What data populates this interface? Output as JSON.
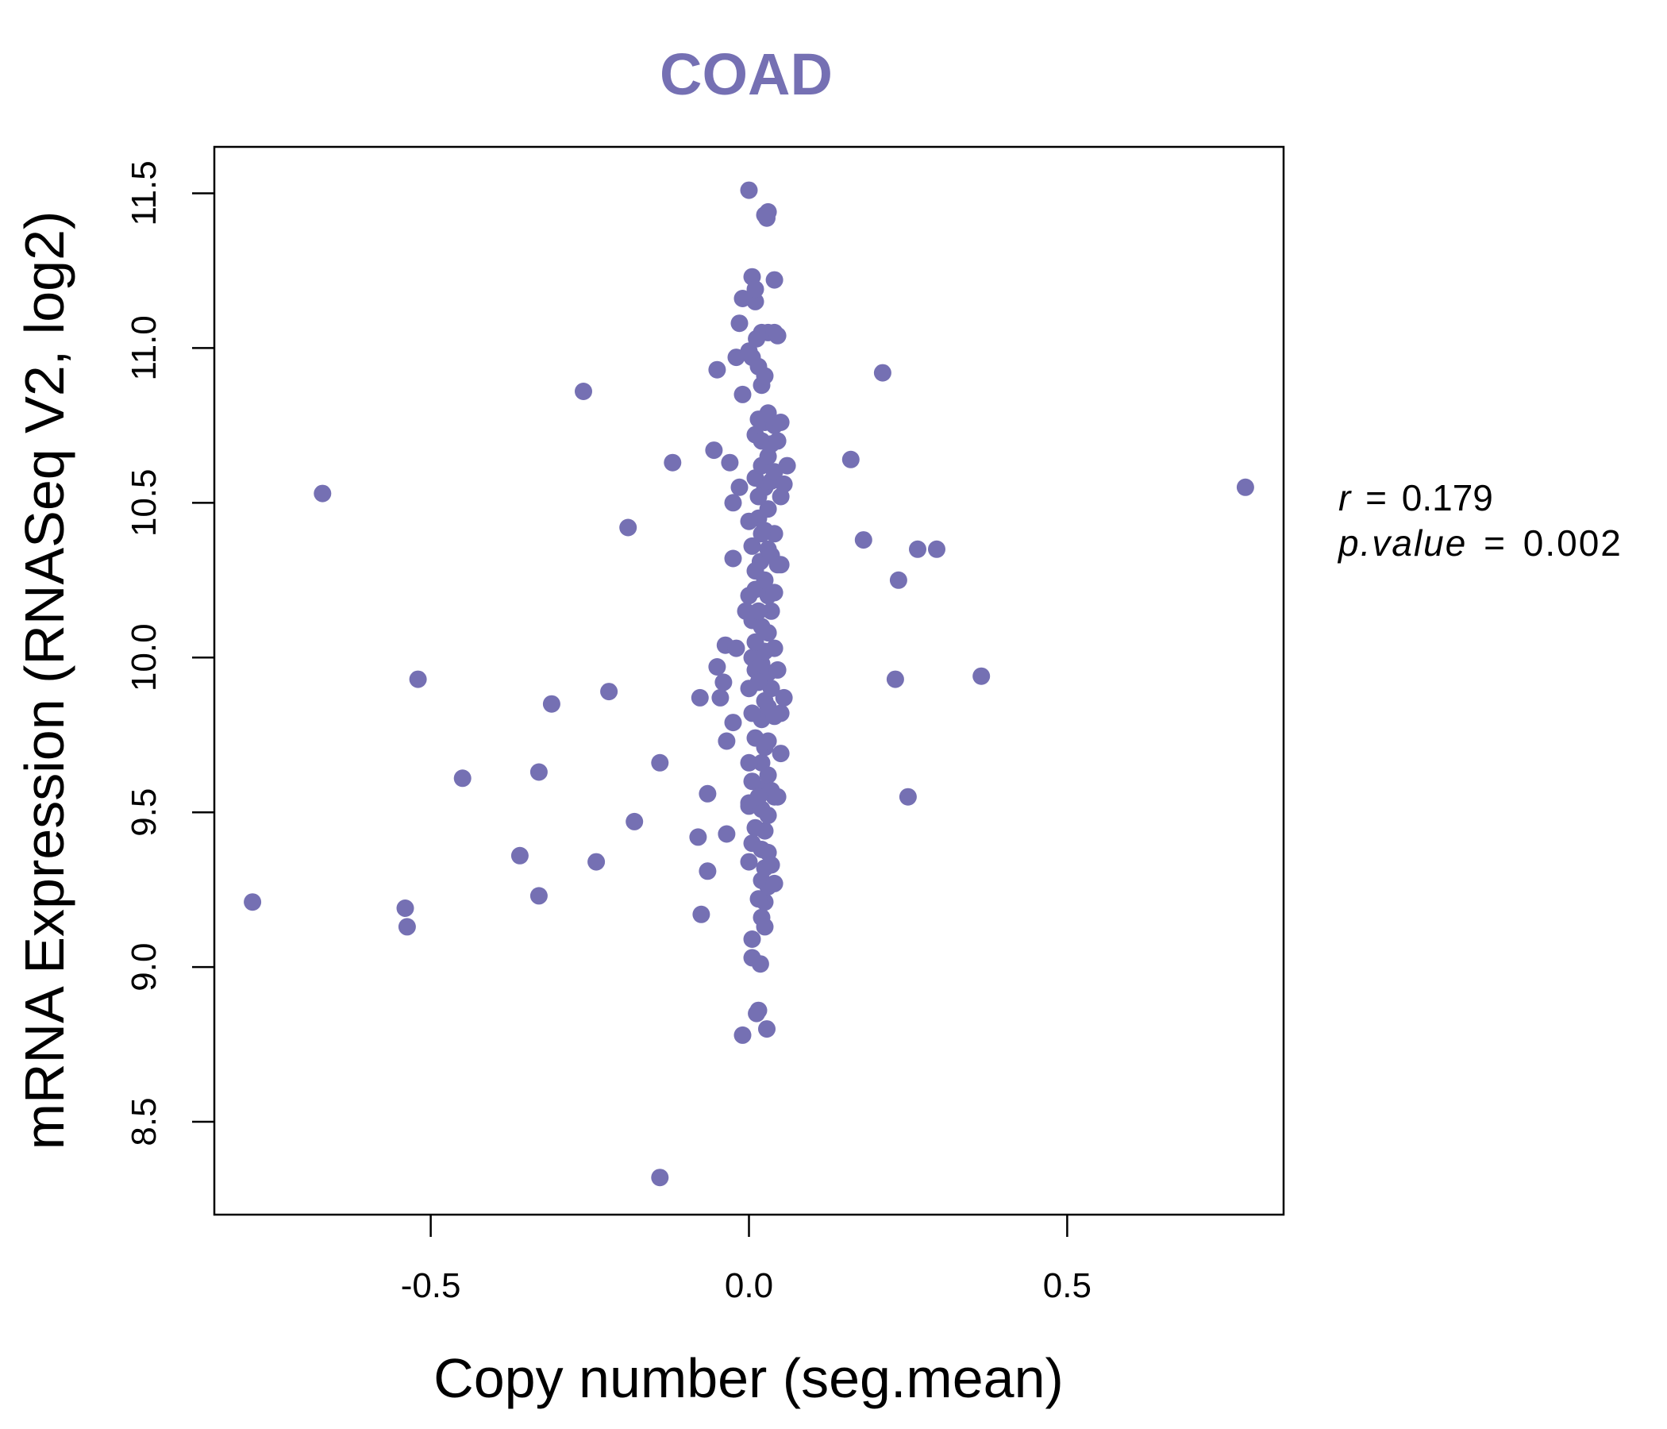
{
  "chart_data": {
    "type": "scatter",
    "title": "COAD",
    "xlabel": "Copy number (seg.mean)",
    "ylabel": "mRNA Expression (RNASeq V2, log2)",
    "xlim": [
      -0.84,
      0.84
    ],
    "ylim": [
      8.2,
      11.65
    ],
    "x_ticks": [
      -0.5,
      0.0,
      0.5
    ],
    "x_tick_labels": [
      "-0.5",
      "0.0",
      "0.5"
    ],
    "y_ticks": [
      8.5,
      9.0,
      9.5,
      10.0,
      10.5,
      11.0,
      11.5
    ],
    "y_tick_labels": [
      "8.5",
      "9.0",
      "9.5",
      "10.0",
      "10.5",
      "11.0",
      "11.5"
    ],
    "grid": false,
    "point_color": "#7570b3",
    "annotation": {
      "r_label": "r",
      "r_value": "0.179",
      "p_label": "p.value",
      "p_value": "0.002",
      "equals": "="
    },
    "points": [
      [
        -0.78,
        9.21
      ],
      [
        -0.67,
        10.53
      ],
      [
        -0.54,
        9.19
      ],
      [
        -0.537,
        9.13
      ],
      [
        -0.52,
        9.93
      ],
      [
        -0.45,
        9.61
      ],
      [
        -0.36,
        9.36
      ],
      [
        -0.33,
        9.63
      ],
      [
        -0.33,
        9.23
      ],
      [
        -0.31,
        9.85
      ],
      [
        -0.26,
        10.86
      ],
      [
        -0.24,
        9.34
      ],
      [
        -0.22,
        9.89
      ],
      [
        -0.19,
        10.42
      ],
      [
        -0.18,
        9.47
      ],
      [
        -0.14,
        9.66
      ],
      [
        -0.14,
        8.32
      ],
      [
        -0.12,
        10.63
      ],
      [
        -0.08,
        9.42
      ],
      [
        -0.077,
        9.87
      ],
      [
        -0.075,
        9.17
      ],
      [
        -0.065,
        9.31
      ],
      [
        -0.065,
        9.56
      ],
      [
        -0.05,
        10.93
      ],
      [
        -0.055,
        10.67
      ],
      [
        -0.05,
        9.97
      ],
      [
        -0.045,
        9.87
      ],
      [
        -0.04,
        9.92
      ],
      [
        -0.037,
        10.04
      ],
      [
        -0.035,
        9.73
      ],
      [
        -0.035,
        9.43
      ],
      [
        -0.03,
        10.63
      ],
      [
        -0.025,
        10.32
      ],
      [
        -0.025,
        10.5
      ],
      [
        -0.025,
        9.79
      ],
      [
        -0.02,
        10.97
      ],
      [
        -0.015,
        11.08
      ],
      [
        -0.01,
        8.78
      ],
      [
        -0.02,
        10.03
      ],
      [
        -0.015,
        10.55
      ],
      [
        -0.01,
        10.85
      ],
      [
        -0.01,
        11.16
      ],
      [
        0.0,
        11.51
      ],
      [
        -0.005,
        10.15
      ],
      [
        0.0,
        9.53
      ],
      [
        0.0,
        10.99
      ],
      [
        0.0,
        9.52
      ],
      [
        0.005,
        11.23
      ],
      [
        0.005,
        10.0
      ],
      [
        0.01,
        11.15
      ],
      [
        0.01,
        11.19
      ],
      [
        0.005,
        10.97
      ],
      [
        0.005,
        9.03
      ],
      [
        0.005,
        9.09
      ],
      [
        0.01,
        10.72
      ],
      [
        0.01,
        10.58
      ],
      [
        0.01,
        10.22
      ],
      [
        0.01,
        9.96
      ],
      [
        0.015,
        8.86
      ],
      [
        0.012,
        8.85
      ],
      [
        0.012,
        11.03
      ],
      [
        0.015,
        10.94
      ],
      [
        0.015,
        10.77
      ],
      [
        0.015,
        10.45
      ],
      [
        0.02,
        11.05
      ],
      [
        0.02,
        10.88
      ],
      [
        0.02,
        10.7
      ],
      [
        0.02,
        10.62
      ],
      [
        0.018,
        10.31
      ],
      [
        0.02,
        10.1
      ],
      [
        0.02,
        9.98
      ],
      [
        0.02,
        9.8
      ],
      [
        0.02,
        9.66
      ],
      [
        0.02,
        9.51
      ],
      [
        0.02,
        9.38
      ],
      [
        0.02,
        9.28
      ],
      [
        0.02,
        9.16
      ],
      [
        0.018,
        9.01
      ],
      [
        0.025,
        11.43
      ],
      [
        0.028,
        11.42
      ],
      [
        0.025,
        10.91
      ],
      [
        0.025,
        10.76
      ],
      [
        0.025,
        10.55
      ],
      [
        0.025,
        10.41
      ],
      [
        0.025,
        10.25
      ],
      [
        0.025,
        10.02
      ],
      [
        0.025,
        9.86
      ],
      [
        0.025,
        9.71
      ],
      [
        0.025,
        9.58
      ],
      [
        0.025,
        9.44
      ],
      [
        0.025,
        9.32
      ],
      [
        0.025,
        9.21
      ],
      [
        0.025,
        9.13
      ],
      [
        0.028,
        8.8
      ],
      [
        0.03,
        11.44
      ],
      [
        0.03,
        11.05
      ],
      [
        0.03,
        10.79
      ],
      [
        0.03,
        10.65
      ],
      [
        0.03,
        10.48
      ],
      [
        0.03,
        10.35
      ],
      [
        0.03,
        10.2
      ],
      [
        0.03,
        10.08
      ],
      [
        0.03,
        9.95
      ],
      [
        0.03,
        9.84
      ],
      [
        0.03,
        9.73
      ],
      [
        0.03,
        9.62
      ],
      [
        0.03,
        9.49
      ],
      [
        0.03,
        9.37
      ],
      [
        0.03,
        9.26
      ],
      [
        0.035,
        10.69
      ],
      [
        0.035,
        10.57
      ],
      [
        0.035,
        10.33
      ],
      [
        0.035,
        10.15
      ],
      [
        0.035,
        9.9
      ],
      [
        0.035,
        9.57
      ],
      [
        0.035,
        9.33
      ],
      [
        0.04,
        11.22
      ],
      [
        0.04,
        11.05
      ],
      [
        0.04,
        10.75
      ],
      [
        0.04,
        10.6
      ],
      [
        0.04,
        10.4
      ],
      [
        0.04,
        10.21
      ],
      [
        0.04,
        10.03
      ],
      [
        0.04,
        9.81
      ],
      [
        0.04,
        9.55
      ],
      [
        0.04,
        9.27
      ],
      [
        0.045,
        11.04
      ],
      [
        0.045,
        10.7
      ],
      [
        0.045,
        10.3
      ],
      [
        0.045,
        9.96
      ],
      [
        0.045,
        9.55
      ],
      [
        0.05,
        10.76
      ],
      [
        0.05,
        10.52
      ],
      [
        0.05,
        10.3
      ],
      [
        0.05,
        9.82
      ],
      [
        0.05,
        9.69
      ],
      [
        0.055,
        10.56
      ],
      [
        0.055,
        9.87
      ],
      [
        0.06,
        10.62
      ],
      [
        0.16,
        10.64
      ],
      [
        0.18,
        10.38
      ],
      [
        0.21,
        10.92
      ],
      [
        0.23,
        9.93
      ],
      [
        0.235,
        10.25
      ],
      [
        0.25,
        9.55
      ],
      [
        0.265,
        10.35
      ],
      [
        0.295,
        10.35
      ],
      [
        0.365,
        9.94
      ],
      [
        0.78,
        10.55
      ],
      [
        0.0,
        10.44
      ],
      [
        0.005,
        10.36
      ],
      [
        0.01,
        10.28
      ],
      [
        0.0,
        10.2
      ],
      [
        0.005,
        10.12
      ],
      [
        0.01,
        10.05
      ],
      [
        0.0,
        9.9
      ],
      [
        0.005,
        9.82
      ],
      [
        0.01,
        9.74
      ],
      [
        0.0,
        9.66
      ],
      [
        0.005,
        9.6
      ],
      [
        0.01,
        9.45
      ],
      [
        0.005,
        9.4
      ],
      [
        0.0,
        9.34
      ],
      [
        0.015,
        10.52
      ],
      [
        0.015,
        10.15
      ],
      [
        0.015,
        9.92
      ],
      [
        0.015,
        9.55
      ],
      [
        0.015,
        9.22
      ],
      [
        0.02,
        10.4
      ]
    ]
  }
}
